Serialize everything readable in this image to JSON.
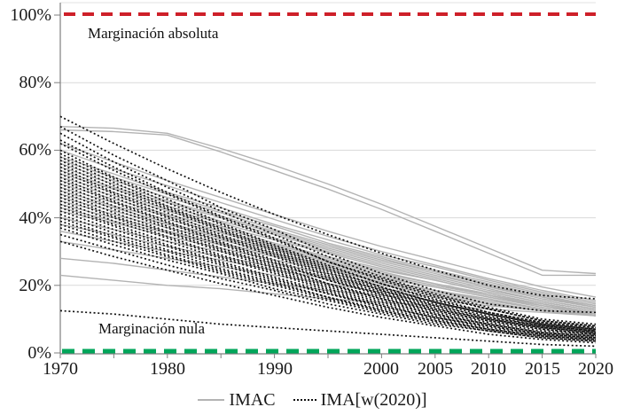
{
  "chart_data": {
    "type": "line",
    "title": "",
    "x_axis": {
      "range": [
        1970,
        2020
      ],
      "ticks": [
        {
          "label": "1970",
          "year": 1970
        },
        {
          "label": "1980",
          "year": 1980
        },
        {
          "label": "1990",
          "year": 1990
        },
        {
          "label": "2000",
          "year": 2000
        },
        {
          "label": "2005",
          "year": 2005
        },
        {
          "label": "2010",
          "year": 2010
        },
        {
          "label": "2015",
          "year": 2015
        },
        {
          "label": "2020",
          "year": 2020
        }
      ],
      "minor_tick_years": [
        1970,
        1975,
        1980,
        1985,
        1990,
        1995,
        2000,
        2005,
        2010,
        2015,
        2020
      ]
    },
    "y_axis": {
      "range": [
        0,
        100
      ],
      "unit": "%",
      "ticks": [
        {
          "label": "100%",
          "value": 100
        },
        {
          "label": "80%",
          "value": 80
        },
        {
          "label": "60%",
          "value": 60
        },
        {
          "label": "40%",
          "value": 40
        },
        {
          "label": "20%",
          "value": 20
        },
        {
          "label": "0%",
          "value": 0
        }
      ]
    },
    "grid": "horizontal",
    "reference_lines": [
      {
        "name": "Marginación absoluta",
        "value": 100,
        "color": "#ce2029",
        "style": "dashed"
      },
      {
        "name": "Marginación nula",
        "value": 0,
        "color": "#00a65a",
        "style": "dashed"
      }
    ],
    "legend": {
      "position": "bottom",
      "entries": [
        {
          "label": "IMAC",
          "line_style": "solid",
          "color": "#b3b3b3"
        },
        {
          "label": "IMA[w(2020)]",
          "line_style": "dotted",
          "color": "#111111"
        }
      ]
    },
    "colors": {
      "grid": "#d9d9d9",
      "axis": "#7f7f7f",
      "frame": "#e3e3e3"
    },
    "years": [
      1970,
      1975,
      1980,
      1985,
      1990,
      1995,
      2000,
      2005,
      2010,
      2015,
      2020
    ],
    "series": [
      {
        "name": "IMAC",
        "style": "solid",
        "color": "#b3b3b3",
        "lines": [
          [
            67,
            66.5,
            65,
            60.5,
            55.5,
            50,
            44,
            37.5,
            31,
            24.5,
            23.5
          ],
          [
            66,
            65.5,
            64.5,
            59.5,
            54,
            48.5,
            42.5,
            36,
            29.5,
            23,
            23
          ],
          [
            62,
            56.5,
            51,
            46,
            41,
            36,
            31.5,
            27.5,
            23.5,
            19.5,
            16.5
          ],
          [
            60,
            54.5,
            49.5,
            44.5,
            39.5,
            34.5,
            30,
            26,
            22,
            18.5,
            15.5
          ],
          [
            58,
            53,
            47.5,
            43,
            38,
            33.5,
            29,
            25.5,
            21.5,
            18,
            15
          ],
          [
            57,
            52,
            47,
            42,
            37.5,
            32.5,
            28.5,
            24.5,
            21,
            17.5,
            14.5
          ],
          [
            56,
            51,
            46,
            41.5,
            36.5,
            32,
            28,
            24,
            20.5,
            17,
            14
          ],
          [
            55,
            50,
            45,
            40.5,
            36,
            31.5,
            27.5,
            24,
            20,
            16.5,
            14
          ],
          [
            54,
            49,
            44.5,
            40,
            35.5,
            31,
            27,
            23.5,
            19.5,
            16.5,
            13.5
          ],
          [
            53,
            48.5,
            43.5,
            39,
            35,
            30.5,
            26.5,
            23,
            19.5,
            16,
            13.5
          ],
          [
            52,
            47.5,
            42.5,
            38.5,
            34,
            30,
            26,
            22.5,
            19,
            15.5,
            13
          ],
          [
            51,
            46.5,
            42,
            37.5,
            33.5,
            29.5,
            25.5,
            22,
            18.5,
            15.5,
            13
          ],
          [
            50,
            45.5,
            41,
            37,
            32.5,
            28.5,
            25,
            21.5,
            18,
            15,
            12.5
          ],
          [
            49,
            44.5,
            40.5,
            36,
            32,
            28,
            24.5,
            21.5,
            18,
            15,
            12.5
          ],
          [
            48,
            43.5,
            39.5,
            35.5,
            31.5,
            27.5,
            24,
            20.5,
            17.5,
            14.5,
            12
          ],
          [
            47,
            43,
            38.5,
            34.5,
            31,
            27,
            23.5,
            20.5,
            17,
            14.5,
            12
          ],
          [
            46,
            42,
            38,
            34,
            30.5,
            26.5,
            23,
            20,
            17,
            14,
            12
          ],
          [
            45,
            41,
            37,
            33.5,
            29.5,
            26,
            22.5,
            19.5,
            16.5,
            14,
            11.5
          ],
          [
            44,
            40,
            36,
            32.5,
            29,
            25.5,
            22,
            19.5,
            16.5,
            13.5,
            11.5
          ],
          [
            43,
            39,
            35.5,
            32,
            28.5,
            25,
            21.5,
            18.5,
            16,
            13,
            11
          ],
          [
            42,
            38.5,
            34.5,
            31,
            27.5,
            24.5,
            21,
            18.5,
            15.5,
            13,
            11
          ],
          [
            40,
            36.5,
            33,
            30,
            26.5,
            23.5,
            20.5,
            18,
            15.5,
            13,
            11
          ],
          [
            38,
            35,
            31.5,
            28.5,
            25.5,
            22.5,
            20,
            17.5,
            15,
            12.5,
            11
          ],
          [
            36,
            33,
            30,
            27.5,
            24.5,
            22,
            19,
            17,
            14.5,
            12.5,
            11
          ],
          [
            33,
            30.5,
            28,
            25.5,
            23,
            20.5,
            18,
            16.5,
            14.5,
            12.5,
            11
          ],
          [
            28,
            26.5,
            24.5,
            22.5,
            20.5,
            18.5,
            17,
            15.5,
            14,
            12.5,
            11.5
          ],
          [
            23,
            21.5,
            20,
            19,
            17.5,
            16,
            15,
            14,
            13,
            12,
            11
          ]
        ]
      },
      {
        "name": "IMA[w(2020)]",
        "style": "dotted",
        "color": "#111111",
        "lines": [
          [
            70,
            62,
            54.5,
            47.5,
            41,
            35,
            29.5,
            24.5,
            20,
            17,
            16
          ],
          [
            67,
            58.5,
            51,
            43,
            36.5,
            29.5,
            23.5,
            18.5,
            14.5,
            12.5,
            12
          ],
          [
            65,
            56.5,
            49,
            42,
            35,
            28.5,
            22.5,
            17.5,
            13.5,
            10,
            8.5
          ],
          [
            63,
            55,
            47.5,
            40.5,
            34,
            27,
            22,
            17,
            13,
            9.5,
            8
          ],
          [
            62,
            54,
            47,
            40,
            33.5,
            27,
            21.5,
            16.5,
            13,
            9.5,
            8
          ],
          [
            60,
            52,
            45.5,
            38.5,
            32,
            26,
            20.5,
            16,
            12,
            9,
            7.5
          ],
          [
            59,
            51.5,
            44.5,
            38,
            31.5,
            25.5,
            20.5,
            15.5,
            12,
            9,
            7.5
          ],
          [
            58,
            50.5,
            43.5,
            37,
            31,
            25,
            19.5,
            15,
            11.5,
            8.5,
            7
          ],
          [
            57,
            49.5,
            43,
            36.5,
            30.5,
            24.5,
            19.5,
            15,
            11.5,
            8.5,
            7
          ],
          [
            56,
            48.5,
            42.5,
            36,
            30,
            24,
            19,
            15,
            11.5,
            8.5,
            7
          ],
          [
            55,
            47.5,
            41.5,
            35,
            29.5,
            23.5,
            18.5,
            14.5,
            11,
            8,
            6.5
          ],
          [
            54,
            47,
            40.5,
            34.5,
            29,
            23,
            18.5,
            14,
            10.5,
            8,
            6.5
          ],
          [
            53,
            46,
            40,
            34,
            28.5,
            22.5,
            18,
            14,
            10.5,
            8,
            6.5
          ],
          [
            52,
            45,
            39,
            33,
            27.5,
            22,
            17.5,
            13.5,
            10,
            7.5,
            6
          ],
          [
            51,
            44.5,
            38.5,
            32.5,
            27,
            21.5,
            17.5,
            13,
            10,
            7.5,
            6
          ],
          [
            50,
            43.5,
            37.5,
            32,
            26.5,
            21.5,
            17,
            13,
            10,
            7.5,
            6
          ],
          [
            49,
            42.5,
            37,
            31,
            26,
            20.5,
            16.5,
            12.5,
            9.5,
            7,
            5.5
          ],
          [
            48,
            41.5,
            36,
            30.5,
            25.5,
            20.5,
            16,
            12.5,
            9.5,
            7,
            5.5
          ],
          [
            47,
            40.5,
            35.5,
            30,
            25,
            20,
            16,
            12,
            9,
            6.5,
            5.5
          ],
          [
            46,
            40,
            34.5,
            29,
            24.5,
            19.5,
            15.5,
            11.5,
            8.5,
            6,
            5
          ],
          [
            45,
            39,
            34,
            28.5,
            24,
            19,
            15,
            11.5,
            8.5,
            6,
            5
          ],
          [
            44,
            38,
            33,
            28,
            23.5,
            18.5,
            14.5,
            11,
            8.5,
            6,
            5
          ],
          [
            43,
            37.5,
            32,
            27,
            22.5,
            18,
            14,
            10.5,
            8,
            5.5,
            4.5
          ],
          [
            42,
            36.5,
            31.5,
            26.5,
            22,
            17.5,
            14,
            10.5,
            8,
            5.5,
            4.5
          ],
          [
            41,
            35.5,
            30.5,
            26,
            21.5,
            17.5,
            13.5,
            10.5,
            7.5,
            5.5,
            4.5
          ],
          [
            40,
            34.5,
            30,
            25,
            21,
            16.5,
            13,
            10,
            7,
            5,
            4
          ],
          [
            39,
            34,
            29,
            24.5,
            20.5,
            16.5,
            12.5,
            9.5,
            7,
            5,
            4
          ],
          [
            38,
            33,
            28.5,
            24,
            20,
            16,
            12.5,
            9.5,
            7,
            5,
            4
          ],
          [
            37,
            32,
            27.5,
            23.5,
            19,
            15.5,
            12,
            9,
            6.5,
            4.5,
            3.5
          ],
          [
            35,
            30.5,
            26,
            22,
            18.5,
            14.5,
            11.5,
            8.5,
            6.5,
            4.5,
            3.5
          ],
          [
            33,
            28.5,
            24.5,
            20.5,
            17,
            13.5,
            10.5,
            8,
            5.5,
            4,
            3
          ],
          [
            12.5,
            11.5,
            10,
            8.5,
            7.5,
            6.5,
            5.5,
            4.5,
            3.5,
            2.5,
            2
          ]
        ]
      }
    ]
  }
}
